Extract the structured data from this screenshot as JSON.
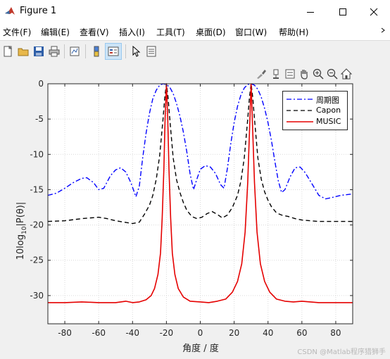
{
  "window": {
    "title": "Figure 1"
  },
  "menu": [
    "文件(F)",
    "编辑(E)",
    "查看(V)",
    "插入(I)",
    "工具(T)",
    "桌面(D)",
    "窗口(W)",
    "帮助(H)"
  ],
  "toolbar_icons": [
    "new-figure-icon",
    "open-folder-icon",
    "save-icon",
    "print-icon",
    "link-plot-icon",
    "colorbar-icon",
    "legend-icon",
    "pointer-icon",
    "property-inspector-icon"
  ],
  "axes_toolbar_icons": [
    "brush-icon",
    "data-tip-icon",
    "restore-view-icon",
    "pan-hand-icon",
    "zoom-in-icon",
    "zoom-out-icon",
    "home-icon"
  ],
  "colors": {
    "periodogram": "#0000ff",
    "capon": "#000000",
    "music": "#e50000"
  },
  "chart_data": {
    "type": "line",
    "xlabel": "角度 / 度",
    "ylabel_main": "10log",
    "ylabel_sub": "10",
    "ylabel_tail": "|P(θ)|",
    "xlim": [
      -90,
      90
    ],
    "ylim": [
      -34,
      0
    ],
    "xticks": [
      -80,
      -60,
      -40,
      -20,
      0,
      20,
      40,
      60,
      80
    ],
    "yticks": [
      0,
      -5,
      -10,
      -15,
      -20,
      -25,
      -30
    ],
    "grid": true,
    "legend_position": "top-right",
    "series": [
      {
        "name": "周期图",
        "style": "dash-dot",
        "color": "#0000ff",
        "points": [
          [
            -90,
            -15.8
          ],
          [
            -85,
            -15.5
          ],
          [
            -80,
            -14.8
          ],
          [
            -75,
            -14.0
          ],
          [
            -70,
            -13.4
          ],
          [
            -67,
            -13.3
          ],
          [
            -63,
            -14.0
          ],
          [
            -60,
            -15.0
          ],
          [
            -57,
            -14.8
          ],
          [
            -53,
            -13.0
          ],
          [
            -50,
            -12.2
          ],
          [
            -47,
            -11.9
          ],
          [
            -44,
            -12.5
          ],
          [
            -41,
            -14.0
          ],
          [
            -38,
            -16.0
          ],
          [
            -36,
            -14.5
          ],
          [
            -34,
            -10.5
          ],
          [
            -32,
            -7.0
          ],
          [
            -30,
            -4.2
          ],
          [
            -28,
            -2.1
          ],
          [
            -26,
            -0.9
          ],
          [
            -24,
            -0.2
          ],
          [
            -22,
            0
          ],
          [
            -20,
            -0.1
          ],
          [
            -18,
            -0.5
          ],
          [
            -16,
            -1.4
          ],
          [
            -14,
            -2.8
          ],
          [
            -12,
            -4.6
          ],
          [
            -10,
            -6.8
          ],
          [
            -8,
            -9.6
          ],
          [
            -6,
            -12.8
          ],
          [
            -4,
            -15.0
          ],
          [
            -2,
            -13.5
          ],
          [
            0,
            -12.1
          ],
          [
            3,
            -11.6
          ],
          [
            6,
            -11.8
          ],
          [
            9,
            -12.7
          ],
          [
            12,
            -14.3
          ],
          [
            14,
            -14.8
          ],
          [
            16,
            -12.0
          ],
          [
            18,
            -8.5
          ],
          [
            20,
            -5.5
          ],
          [
            22,
            -3.2
          ],
          [
            24,
            -1.6
          ],
          [
            26,
            -0.6
          ],
          [
            28,
            -0.1
          ],
          [
            30,
            0
          ],
          [
            32,
            -0.2
          ],
          [
            34,
            -0.8
          ],
          [
            36,
            -1.9
          ],
          [
            38,
            -3.5
          ],
          [
            40,
            -5.5
          ],
          [
            42,
            -8.0
          ],
          [
            44,
            -10.9
          ],
          [
            46,
            -13.7
          ],
          [
            48,
            -15.4
          ],
          [
            50,
            -15.0
          ],
          [
            53,
            -13.2
          ],
          [
            56,
            -11.9
          ],
          [
            59,
            -11.8
          ],
          [
            62,
            -12.6
          ],
          [
            66,
            -14.2
          ],
          [
            70,
            -15.8
          ],
          [
            74,
            -16.3
          ],
          [
            78,
            -16.1
          ],
          [
            83,
            -15.8
          ],
          [
            90,
            -15.6
          ]
        ]
      },
      {
        "name": "Capon",
        "style": "dashed",
        "color": "#000000",
        "points": [
          [
            -90,
            -19.5
          ],
          [
            -80,
            -19.4
          ],
          [
            -70,
            -19.1
          ],
          [
            -60,
            -18.9
          ],
          [
            -55,
            -19.1
          ],
          [
            -50,
            -19.4
          ],
          [
            -45,
            -19.6
          ],
          [
            -40,
            -19.8
          ],
          [
            -36,
            -19.6
          ],
          [
            -33,
            -18.5
          ],
          [
            -30,
            -17.2
          ],
          [
            -28,
            -15.8
          ],
          [
            -26,
            -13.5
          ],
          [
            -24,
            -10.2
          ],
          [
            -22,
            -5.0
          ],
          [
            -21,
            -2.0
          ],
          [
            -20,
            0
          ],
          [
            -19,
            -2.0
          ],
          [
            -18,
            -5.0
          ],
          [
            -16,
            -10.5
          ],
          [
            -14,
            -13.6
          ],
          [
            -12,
            -15.4
          ],
          [
            -10,
            -16.8
          ],
          [
            -8,
            -17.9
          ],
          [
            -5,
            -18.8
          ],
          [
            -2,
            -19.1
          ],
          [
            1,
            -18.9
          ],
          [
            4,
            -18.4
          ],
          [
            7,
            -18.1
          ],
          [
            10,
            -18.5
          ],
          [
            13,
            -19.0
          ],
          [
            16,
            -18.6
          ],
          [
            19,
            -17.5
          ],
          [
            22,
            -15.8
          ],
          [
            24,
            -13.8
          ],
          [
            26,
            -10.5
          ],
          [
            28,
            -5.0
          ],
          [
            29,
            -2.0
          ],
          [
            30,
            0
          ],
          [
            31,
            -2.0
          ],
          [
            32,
            -5.0
          ],
          [
            34,
            -10.5
          ],
          [
            36,
            -13.5
          ],
          [
            38,
            -15.3
          ],
          [
            40,
            -16.5
          ],
          [
            42,
            -17.4
          ],
          [
            45,
            -18.3
          ],
          [
            48,
            -18.6
          ],
          [
            52,
            -18.8
          ],
          [
            56,
            -19.1
          ],
          [
            60,
            -19.3
          ],
          [
            70,
            -19.5
          ],
          [
            80,
            -19.5
          ],
          [
            90,
            -19.5
          ]
        ]
      },
      {
        "name": "MUSIC",
        "style": "solid",
        "color": "#e50000",
        "points": [
          [
            -90,
            -31.0
          ],
          [
            -80,
            -31.0
          ],
          [
            -70,
            -30.9
          ],
          [
            -60,
            -31.0
          ],
          [
            -50,
            -31.0
          ],
          [
            -44,
            -30.8
          ],
          [
            -40,
            -31.0
          ],
          [
            -36,
            -30.9
          ],
          [
            -32,
            -30.6
          ],
          [
            -29,
            -30.0
          ],
          [
            -27,
            -29.0
          ],
          [
            -25,
            -27.0
          ],
          [
            -23.5,
            -24.0
          ],
          [
            -22.5,
            -19.0
          ],
          [
            -21.5,
            -12.0
          ],
          [
            -20.8,
            -5.0
          ],
          [
            -20,
            0
          ],
          [
            -19.2,
            -5.0
          ],
          [
            -18.5,
            -12.0
          ],
          [
            -17.5,
            -19.0
          ],
          [
            -16.5,
            -24.0
          ],
          [
            -15,
            -27.0
          ],
          [
            -13,
            -29.0
          ],
          [
            -10,
            -30.2
          ],
          [
            -6,
            -30.8
          ],
          [
            0,
            -30.9
          ],
          [
            5,
            -31.0
          ],
          [
            10,
            -30.8
          ],
          [
            15,
            -30.5
          ],
          [
            19,
            -29.5
          ],
          [
            22,
            -28.0
          ],
          [
            24.5,
            -25.5
          ],
          [
            26.5,
            -21.0
          ],
          [
            28,
            -14.0
          ],
          [
            29,
            -7.0
          ],
          [
            30,
            0
          ],
          [
            31,
            -7.0
          ],
          [
            32,
            -14.0
          ],
          [
            33.5,
            -21.0
          ],
          [
            35.5,
            -25.5
          ],
          [
            38,
            -28.0
          ],
          [
            41,
            -29.5
          ],
          [
            45,
            -30.5
          ],
          [
            50,
            -30.8
          ],
          [
            55,
            -30.9
          ],
          [
            60,
            -30.8
          ],
          [
            70,
            -31.0
          ],
          [
            80,
            -31.0
          ],
          [
            90,
            -31.0
          ]
        ]
      }
    ]
  },
  "watermark": "CSDN @Matlab程序猎狮手"
}
